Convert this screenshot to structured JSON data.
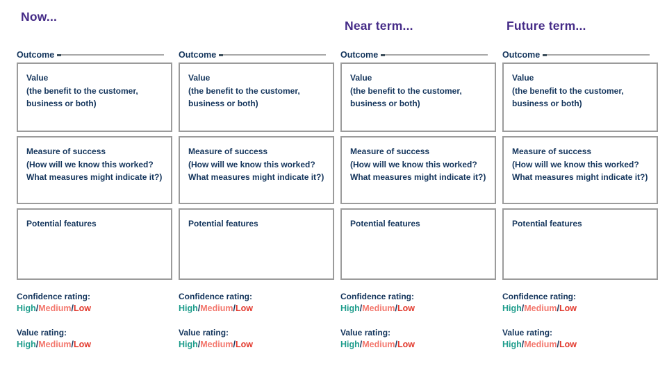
{
  "colors": {
    "heading_purple": "#452b87",
    "text_navy": "#14355c",
    "rating_high_teal": "#1f9d8c",
    "rating_medium_salmon": "#f3776d",
    "rating_low_red": "#e2382c",
    "box_border_gray": "#9b9b9b",
    "rule_gray": "#a8a8a8"
  },
  "columns": [
    {
      "heading": "Now...",
      "outcome_label": "Outcome",
      "value_title": "Value",
      "value_sub": "(the benefit to the customer, business or both)",
      "measure_title": "Measure of success",
      "measure_sub": "(How will we know this worked? What measures might indicate it?)",
      "features_label": "Potential features",
      "confidence_label": "Confidence rating:",
      "value_rating_label": "Value rating:",
      "rating": {
        "high": "High",
        "sep": "/",
        "medium": "Medium",
        "low": "Low"
      }
    },
    {
      "heading": "",
      "outcome_label": "Outcome",
      "value_title": "Value",
      "value_sub": "(the benefit to the customer, business or both)",
      "measure_title": "Measure of success",
      "measure_sub": "(How will we know this worked? What measures might indicate it?)",
      "features_label": "Potential features",
      "confidence_label": "Confidence rating:",
      "value_rating_label": "Value rating:",
      "rating": {
        "high": "High",
        "sep": "/",
        "medium": "Medium",
        "low": "Low"
      }
    },
    {
      "heading": "Near term...",
      "outcome_label": "Outcome",
      "value_title": "Value",
      "value_sub": "(the benefit to the customer, business or both)",
      "measure_title": "Measure of success",
      "measure_sub": "(How will we know this worked? What measures might indicate it?)",
      "features_label": "Potential features",
      "confidence_label": "Confidence rating:",
      "value_rating_label": "Value rating:",
      "rating": {
        "high": "High",
        "sep": "/",
        "medium": "Medium",
        "low": "Low"
      }
    },
    {
      "heading": "Future term...",
      "outcome_label": "Outcome",
      "value_title": "Value",
      "value_sub": "(the benefit to the customer, business or both)",
      "measure_title": "Measure of success",
      "measure_sub": "(How will we know this worked? What measures might indicate it?)",
      "features_label": "Potential features",
      "confidence_label": "Confidence rating:",
      "value_rating_label": "Value rating:",
      "rating": {
        "high": "High",
        "sep": "/",
        "medium": "Medium",
        "low": "Low"
      }
    }
  ]
}
